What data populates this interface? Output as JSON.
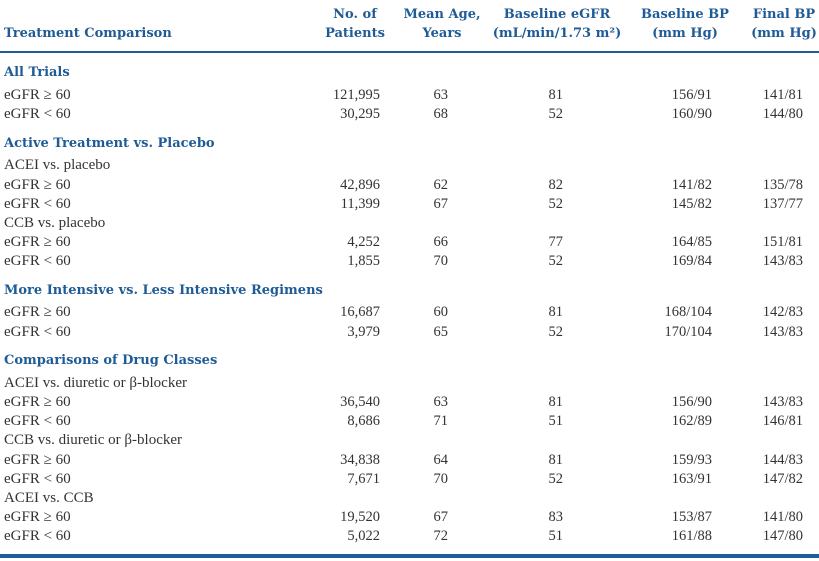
{
  "table": {
    "headers": {
      "comparison": [
        "Treatment Comparison"
      ],
      "patients": [
        "No. of",
        "Patients"
      ],
      "age": [
        "Mean Age,",
        "Years"
      ],
      "egfr": [
        "Baseline eGFR",
        "(mL/min/1.73 m²)"
      ],
      "base_bp": [
        "Baseline BP",
        "(mm Hg)"
      ],
      "final_bp": [
        "Final BP",
        "(mm Hg)"
      ]
    },
    "sections": [
      {
        "title": "All Trials",
        "rows": [
          {
            "label": "eGFR ≥ 60",
            "patients": "121,995",
            "age": "63",
            "egfr": "81",
            "base_bp": "156/91",
            "final_bp": "141/81"
          },
          {
            "label": "eGFR < 60",
            "patients": "30,295",
            "age": "68",
            "egfr": "52",
            "base_bp": "160/90",
            "final_bp": "144/80"
          }
        ]
      },
      {
        "title": "Active Treatment vs. Placebo",
        "subgroups": [
          {
            "title": "ACEI vs. placebo",
            "rows": [
              {
                "label": "eGFR ≥ 60",
                "patients": "42,896",
                "age": "62",
                "egfr": "82",
                "base_bp": "141/82",
                "final_bp": "135/78"
              },
              {
                "label": "eGFR < 60",
                "patients": "11,399",
                "age": "67",
                "egfr": "52",
                "base_bp": "145/82",
                "final_bp": "137/77"
              }
            ]
          },
          {
            "title": "CCB vs. placebo",
            "rows": [
              {
                "label": "eGFR ≥ 60",
                "patients": "4,252",
                "age": "66",
                "egfr": "77",
                "base_bp": "164/85",
                "final_bp": "151/81"
              },
              {
                "label": "eGFR < 60",
                "patients": "1,855",
                "age": "70",
                "egfr": "52",
                "base_bp": "169/84",
                "final_bp": "143/83"
              }
            ]
          }
        ]
      },
      {
        "title": "More Intensive vs. Less Intensive Regimens",
        "rows": [
          {
            "label": "eGFR ≥ 60",
            "patients": "16,687",
            "age": "60",
            "egfr": "81",
            "base_bp": "168/104",
            "final_bp": "142/83"
          },
          {
            "label": "eGFR < 60",
            "patients": "3,979",
            "age": "65",
            "egfr": "52",
            "base_bp": "170/104",
            "final_bp": "143/83"
          }
        ]
      },
      {
        "title": "Comparisons of Drug Classes",
        "subgroups": [
          {
            "title": "ACEI vs. diuretic or β-blocker",
            "rows": [
              {
                "label": "eGFR ≥ 60",
                "patients": "36,540",
                "age": "63",
                "egfr": "81",
                "base_bp": "156/90",
                "final_bp": "143/83"
              },
              {
                "label": "eGFR < 60",
                "patients": "8,686",
                "age": "71",
                "egfr": "51",
                "base_bp": "162/89",
                "final_bp": "146/81"
              }
            ]
          },
          {
            "title": "CCB vs. diuretic or β-blocker",
            "rows": [
              {
                "label": "eGFR ≥ 60",
                "patients": "34,838",
                "age": "64",
                "egfr": "81",
                "base_bp": "159/93",
                "final_bp": "144/83"
              },
              {
                "label": "eGFR < 60",
                "patients": "7,671",
                "age": "70",
                "egfr": "52",
                "base_bp": "163/91",
                "final_bp": "147/82"
              }
            ]
          },
          {
            "title": "ACEI vs. CCB",
            "rows": [
              {
                "label": "eGFR ≥ 60",
                "patients": "19,520",
                "age": "67",
                "egfr": "83",
                "base_bp": "153/87",
                "final_bp": "141/80"
              },
              {
                "label": "eGFR < 60",
                "patients": "5,022",
                "age": "72",
                "egfr": "51",
                "base_bp": "161/88",
                "final_bp": "147/80"
              }
            ]
          }
        ]
      }
    ]
  }
}
